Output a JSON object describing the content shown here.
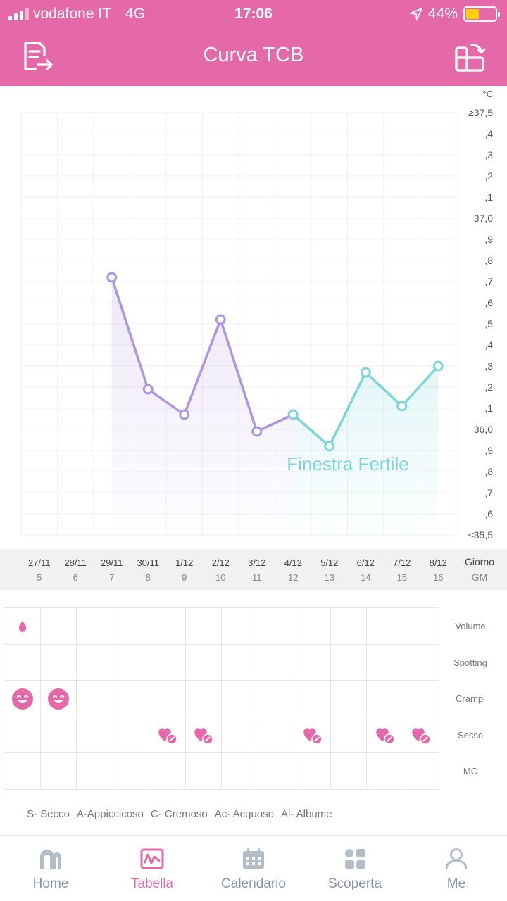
{
  "status": {
    "carrier": "vodafone IT",
    "network": "4G",
    "time": "17:06",
    "battery": "44%",
    "battery_level": 0.44
  },
  "header": {
    "title": "Curva TCB"
  },
  "chart_data": {
    "type": "line",
    "unit": "°C",
    "y_ticks": [
      "≥37,5",
      ",4",
      ",3",
      ",2",
      ",1",
      "37,0",
      ",9",
      ",8",
      ",7",
      ",6",
      ",5",
      ",4",
      ",3",
      ",2",
      ",1",
      "36,0",
      ",9",
      ",8",
      ",7",
      ",6",
      "≤35,5"
    ],
    "ylim": [
      35.5,
      37.5
    ],
    "dates": [
      "27/11",
      "28/11",
      "29/11",
      "30/11",
      "1/12",
      "2/12",
      "3/12",
      "4/12",
      "5/12",
      "6/12",
      "7/12",
      "8/12"
    ],
    "cycle_days": [
      "5",
      "6",
      "7",
      "8",
      "9",
      "10",
      "11",
      "12",
      "13",
      "14",
      "15",
      "16"
    ],
    "x_axis_label": "Giorno",
    "x_axis_sublabel": "GM",
    "values": [
      null,
      null,
      36.72,
      36.19,
      36.07,
      36.52,
      35.99,
      36.07,
      35.92,
      36.27,
      36.11,
      36.3
    ],
    "fertile_start_index": 7,
    "fertile_label": "Finestra Fertile",
    "colors": {
      "normal": "#ae95e3",
      "fertile": "#7fd4d8"
    }
  },
  "symptoms": {
    "rows": [
      "Volume",
      "Spotting",
      "Crampi",
      "Sesso",
      "MC"
    ],
    "marks": [
      {
        "row": 0,
        "col": 0,
        "icon": "drop-icon"
      },
      {
        "row": 2,
        "col": 0,
        "icon": "smiley-icon"
      },
      {
        "row": 2,
        "col": 1,
        "icon": "smiley-icon"
      },
      {
        "row": 3,
        "col": 4,
        "icon": "heart-icon"
      },
      {
        "row": 3,
        "col": 5,
        "icon": "heart-icon"
      },
      {
        "row": 3,
        "col": 8,
        "icon": "heart-icon"
      },
      {
        "row": 3,
        "col": 10,
        "icon": "heart-icon"
      },
      {
        "row": 3,
        "col": 11,
        "icon": "heart-icon"
      }
    ],
    "accent": "#e569a9"
  },
  "legend": [
    "S- Secco",
    "A-Appiccicoso",
    "C- Cremoso",
    "Ac- Acquoso",
    "Al- Albume"
  ],
  "nav": {
    "items": [
      {
        "label": "Home",
        "icon": "home-icon"
      },
      {
        "label": "Tabella",
        "icon": "chart-icon"
      },
      {
        "label": "Calendario",
        "icon": "calendar-icon"
      },
      {
        "label": "Scoperta",
        "icon": "discover-icon"
      },
      {
        "label": "Me",
        "icon": "user-icon"
      }
    ],
    "active_index": 1
  }
}
